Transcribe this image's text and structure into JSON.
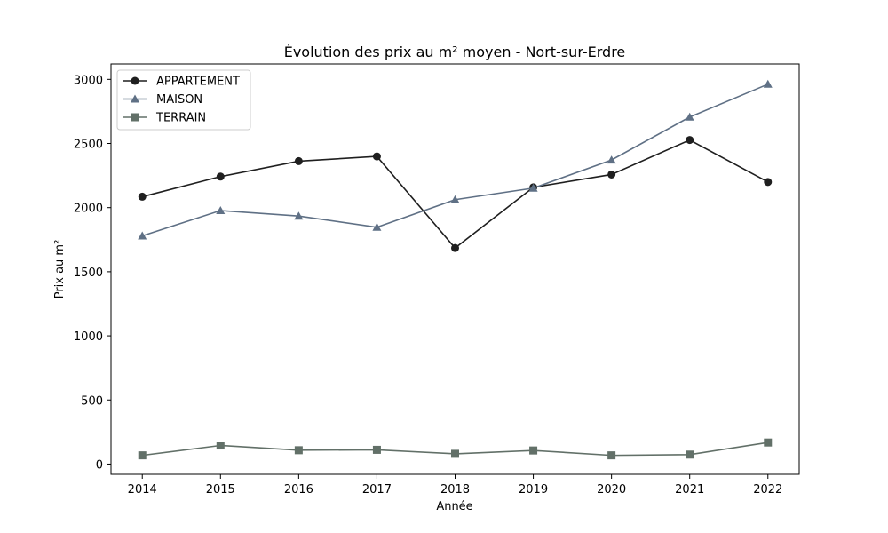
{
  "chart_data": {
    "type": "line",
    "title": "Évolution des prix au m² moyen - Nort-sur-Erdre",
    "xlabel": "Année",
    "ylabel": "Prix au m²",
    "x": [
      2014,
      2015,
      2016,
      2017,
      2018,
      2019,
      2020,
      2021,
      2022
    ],
    "x_ticks": [
      "2014",
      "2015",
      "2016",
      "2017",
      "2018",
      "2019",
      "2020",
      "2021",
      "2022"
    ],
    "ylim": [
      -80,
      3120
    ],
    "y_ticks": [
      0,
      500,
      1000,
      1500,
      2000,
      2500,
      3000
    ],
    "y_tick_labels": [
      "0",
      "500",
      "1000",
      "1500",
      "2000",
      "2500",
      "3000"
    ],
    "grid": false,
    "legend_position": "top-left",
    "series": [
      {
        "name": "APPARTEMENT",
        "marker": "circle",
        "color": "#1f1f1f",
        "values": [
          2085,
          2242,
          2362,
          2399,
          1685,
          2158,
          2258,
          2527,
          2200
        ]
      },
      {
        "name": "MAISON",
        "marker": "triangle",
        "color": "#5f7085",
        "values": [
          1780,
          1977,
          1934,
          1847,
          2062,
          2152,
          2371,
          2706,
          2962
        ]
      },
      {
        "name": "TERRAIN",
        "marker": "square",
        "color": "#627068",
        "values": [
          68,
          145,
          108,
          111,
          80,
          106,
          68,
          74,
          168
        ]
      }
    ]
  }
}
